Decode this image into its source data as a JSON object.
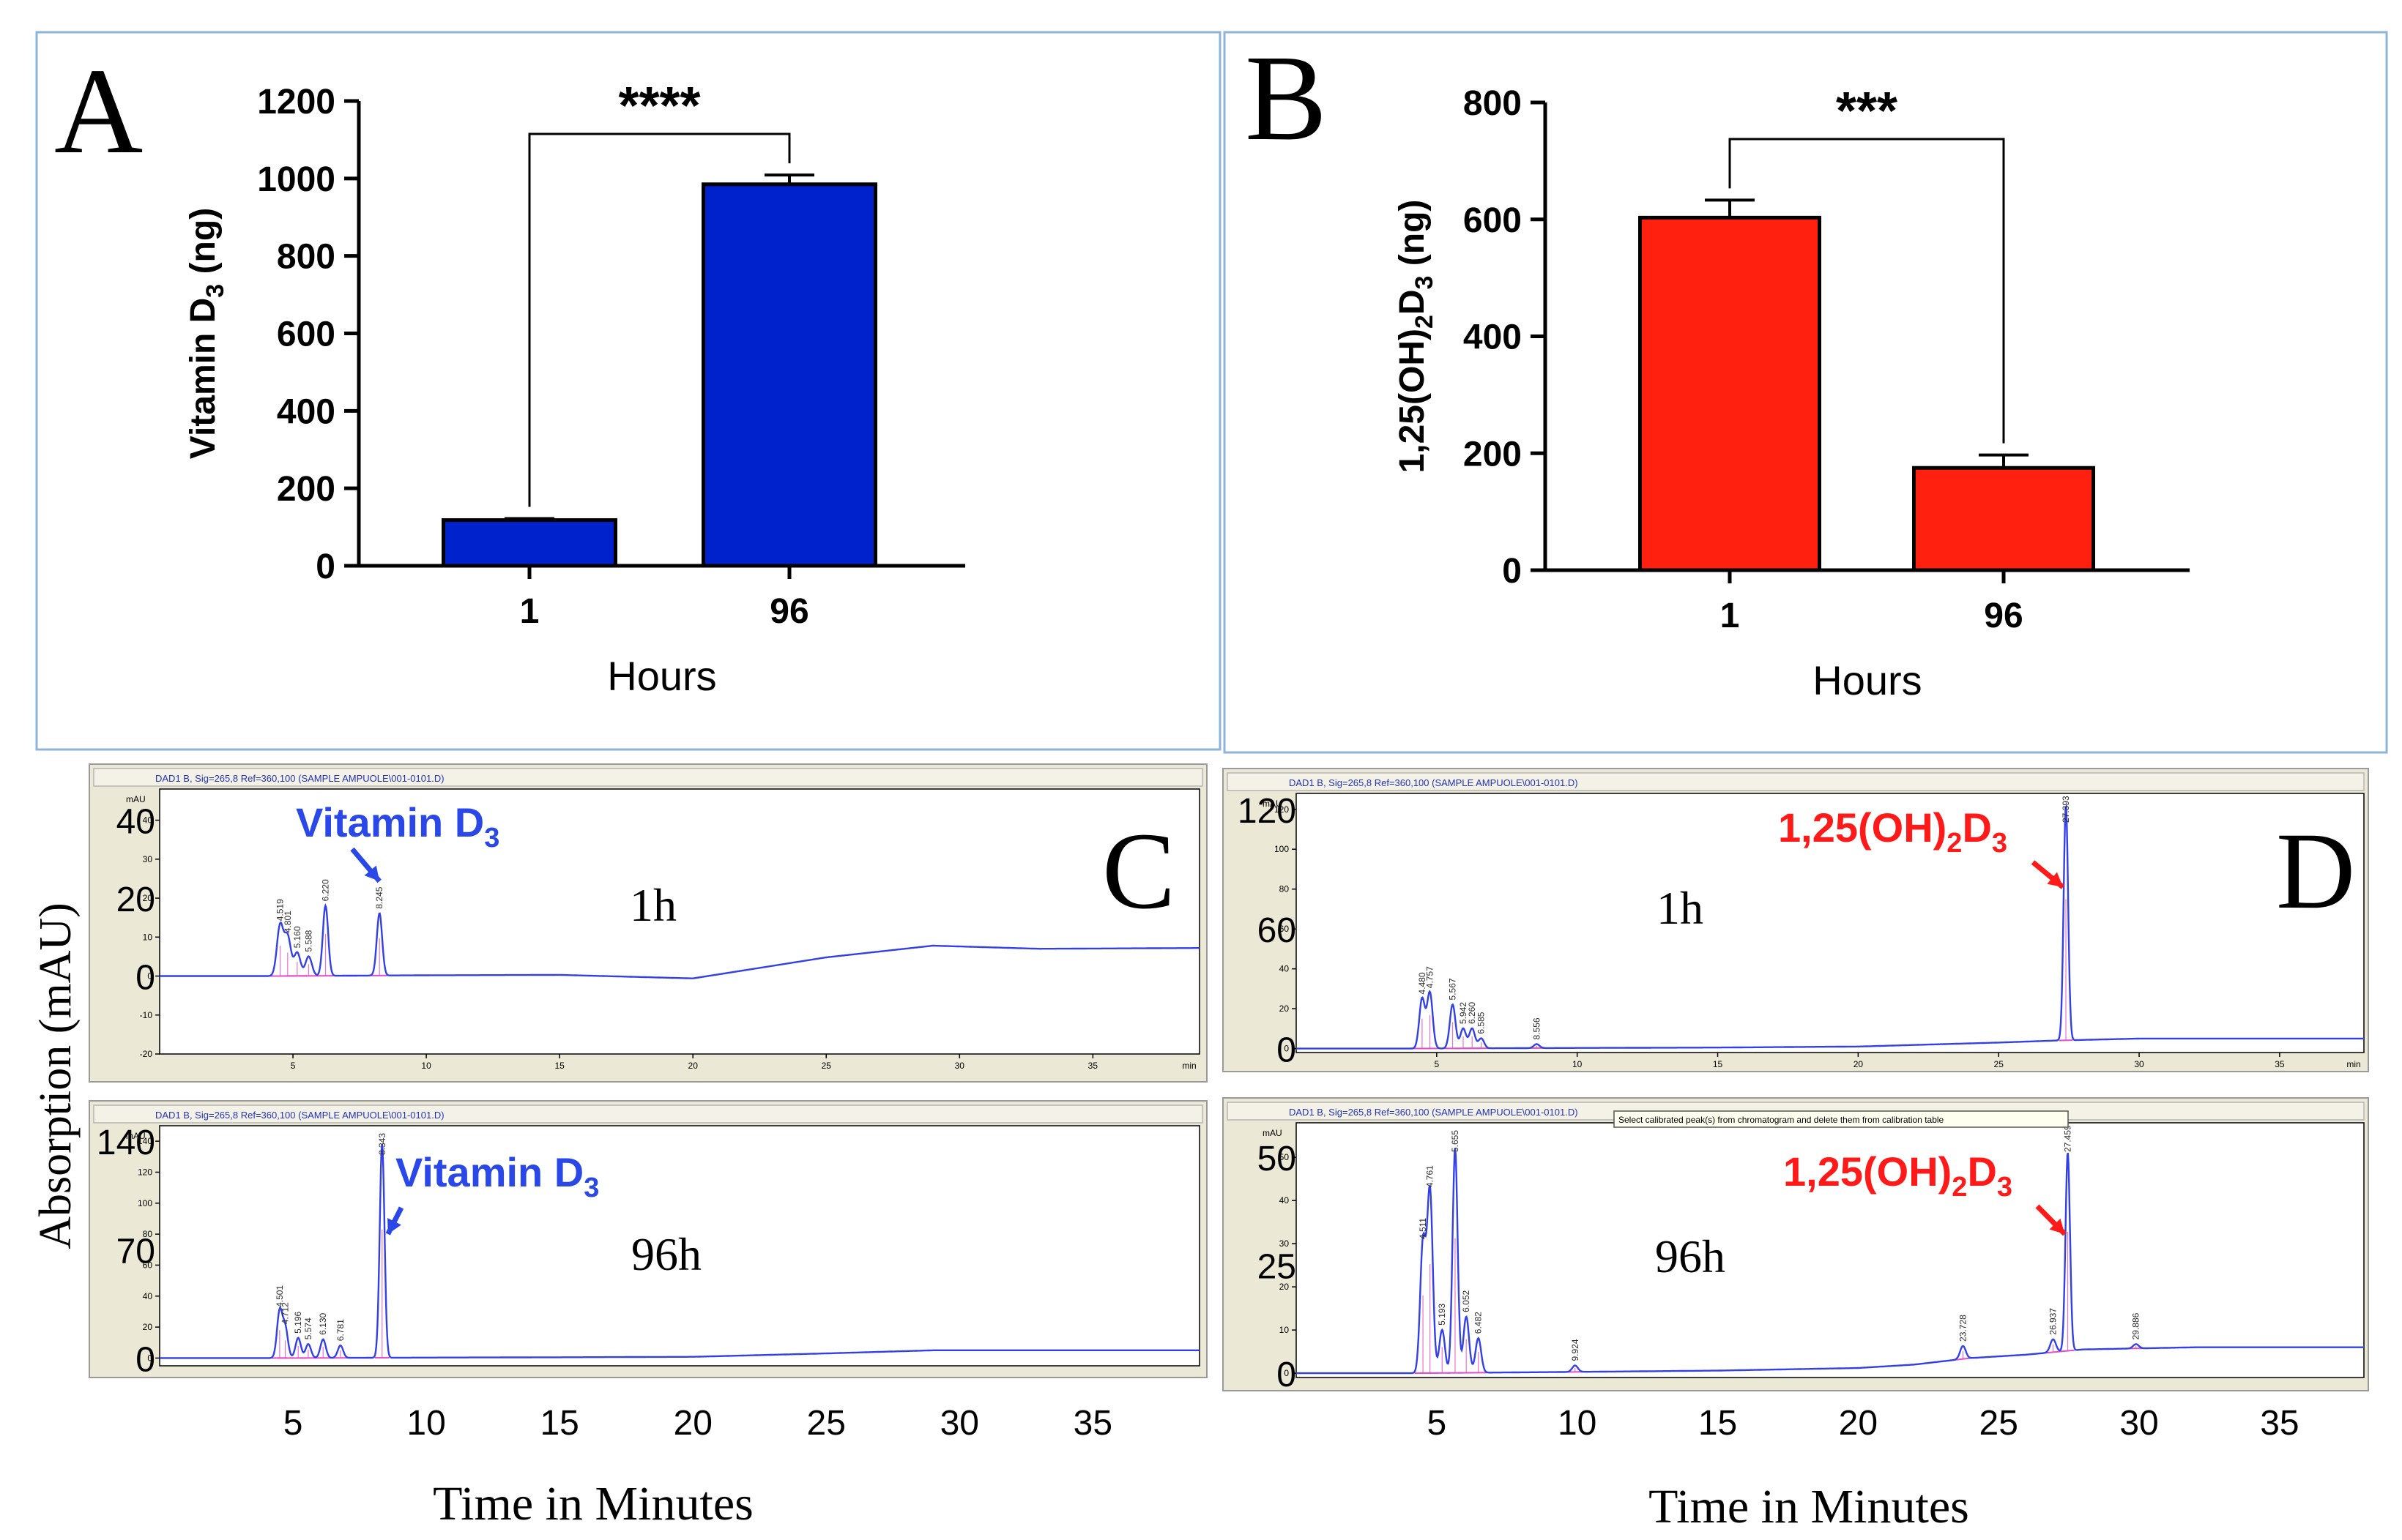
{
  "colors": {
    "blue_bar": "#0022CC",
    "red_bar": "#FF2010",
    "panel_border": "#8FB4D9",
    "chrom_bg": "#ECE8D6",
    "trace": "#3340E6",
    "baseline": "#E24FC8",
    "label_blue": "#2A48E8",
    "label_red": "#FF1A1A"
  },
  "figure": {
    "shared_ylabel": "Absorption (mAU)",
    "bottom_xlabel": "Time in Minutes"
  },
  "chart_data": [
    {
      "id": "A",
      "type": "bar",
      "panel_label": "A",
      "categories": [
        "1",
        "96"
      ],
      "values": [
        118,
        985
      ],
      "errors": [
        4,
        24
      ],
      "ylabel_main": "Vitamin D",
      "ylabel_sub": "3",
      "ylabel_tail": " (ng)",
      "xlabel": "Hours",
      "ylim": [
        0,
        1200
      ],
      "yticks": [
        "0",
        "200",
        "400",
        "600",
        "800",
        "1000",
        "1200"
      ],
      "significance": "****",
      "color": "#0022CC"
    },
    {
      "id": "B",
      "type": "bar",
      "panel_label": "B",
      "categories": [
        "1",
        "96"
      ],
      "values": [
        603,
        175
      ],
      "errors": [
        30,
        22
      ],
      "ylabel_main": "1,25(OH)",
      "ylabel_sub": "2",
      "ylabel_mid": "D",
      "ylabel_sub2": "3",
      "ylabel_tail": " (ng)",
      "xlabel": "Hours",
      "ylim": [
        0,
        800
      ],
      "yticks": [
        "0",
        "200",
        "400",
        "600",
        "800"
      ],
      "significance": "***",
      "color": "#FF2010"
    },
    {
      "id": "C1",
      "type": "line",
      "panel_label": "C",
      "header": "DAD1 B, Sig=265,8 Ref=360,100 (SAMPLE AMPUOLE\\001-0101.D)",
      "time_label": "1h",
      "unit": "mAU",
      "xlim": [
        0,
        39
      ],
      "ylim": [
        -20,
        48
      ],
      "small_yticks": [
        "-20",
        "-10",
        "0",
        "10",
        "20",
        "30",
        "40"
      ],
      "big_yticks": [
        "0",
        "20",
        "40"
      ],
      "small_xticks": [
        "5",
        "10",
        "15",
        "20",
        "25",
        "30",
        "35"
      ],
      "x_unit": "min",
      "baseline_points": [
        [
          0,
          0
        ],
        [
          4.3,
          0
        ],
        [
          10,
          0.2
        ],
        [
          15,
          0.3
        ],
        [
          20,
          -0.6
        ],
        [
          25,
          4.8
        ],
        [
          29,
          7.8
        ],
        [
          33,
          7
        ],
        [
          39,
          7.2
        ]
      ],
      "peaks": [
        {
          "t": 4.519,
          "h": 13,
          "w": 0.12
        },
        {
          "t": 4.801,
          "h": 10,
          "w": 0.12
        },
        {
          "t": 5.16,
          "h": 6,
          "w": 0.12
        },
        {
          "t": 5.588,
          "h": 5,
          "w": 0.12
        },
        {
          "t": 6.22,
          "h": 18,
          "w": 0.1
        },
        {
          "t": 8.245,
          "h": 16,
          "w": 0.1
        }
      ],
      "peak_labels": [
        "4.519",
        "4.801",
        "5.160",
        "5.588",
        "6.220",
        "8.245"
      ],
      "compound_main": "Vitamin D",
      "compound_sub": "3",
      "arrow_peak": 5
    },
    {
      "id": "C2",
      "type": "line",
      "header": "DAD1 B, Sig=265,8 Ref=360,100 (SAMPLE AMPUOLE\\001-0101.D)",
      "time_label": "96h",
      "unit": "mAU",
      "xlim": [
        0,
        39
      ],
      "ylim": [
        -5,
        150
      ],
      "small_yticks": [
        "0",
        "20",
        "40",
        "60",
        "80",
        "100",
        "120",
        "140"
      ],
      "big_yticks": [
        "0",
        "70",
        "140"
      ],
      "small_xticks": [],
      "baseline_points": [
        [
          0,
          0
        ],
        [
          4.6,
          0
        ],
        [
          10,
          0.3
        ],
        [
          15,
          0.5
        ],
        [
          20,
          0.8
        ],
        [
          25,
          3
        ],
        [
          29,
          5
        ],
        [
          33,
          5
        ],
        [
          39,
          5
        ]
      ],
      "peaks": [
        {
          "t": 4.501,
          "h": 30,
          "w": 0.1
        },
        {
          "t": 4.712,
          "h": 19,
          "w": 0.1
        },
        {
          "t": 5.196,
          "h": 13,
          "w": 0.1
        },
        {
          "t": 5.574,
          "h": 9,
          "w": 0.1
        },
        {
          "t": 6.13,
          "h": 12,
          "w": 0.1
        },
        {
          "t": 6.781,
          "h": 8,
          "w": 0.1
        },
        {
          "t": 8.343,
          "h": 138,
          "w": 0.09
        }
      ],
      "peak_labels": [
        "4.501",
        "4.712",
        "5.196",
        "5.574",
        "6.130",
        "6.781",
        "8.343"
      ],
      "compound_main": "Vitamin D",
      "compound_sub": "3",
      "arrow_peak": 6,
      "bottom_xticks": [
        "5",
        "10",
        "15",
        "20",
        "25",
        "30",
        "35"
      ]
    },
    {
      "id": "D1",
      "type": "line",
      "panel_label": "D",
      "header": "DAD1 B, Sig=265,8 Ref=360,100 (SAMPLE AMPUOLE\\001-0101.D)",
      "time_label": "1h",
      "unit": "mAU",
      "xlim": [
        0,
        38
      ],
      "ylim": [
        -2,
        128
      ],
      "small_yticks": [
        "0",
        "20",
        "40",
        "60",
        "80",
        "100",
        "120"
      ],
      "big_yticks": [
        "0",
        "60",
        "120"
      ],
      "small_xticks": [
        "5",
        "10",
        "15",
        "20",
        "25",
        "30",
        "35"
      ],
      "x_unit": "min",
      "baseline_points": [
        [
          0,
          0
        ],
        [
          4.2,
          0
        ],
        [
          10,
          0.3
        ],
        [
          15,
          0.5
        ],
        [
          20,
          1
        ],
        [
          25,
          3
        ],
        [
          27,
          4
        ],
        [
          30,
          5
        ],
        [
          38,
          5
        ]
      ],
      "peaks": [
        {
          "t": 4.48,
          "h": 25,
          "w": 0.1
        },
        {
          "t": 4.757,
          "h": 28,
          "w": 0.1
        },
        {
          "t": 5.567,
          "h": 22,
          "w": 0.1
        },
        {
          "t": 5.942,
          "h": 10,
          "w": 0.1
        },
        {
          "t": 6.26,
          "h": 10,
          "w": 0.1
        },
        {
          "t": 6.585,
          "h": 5,
          "w": 0.1
        },
        {
          "t": 8.556,
          "h": 2,
          "w": 0.1
        },
        {
          "t": 27.393,
          "h": 118,
          "w": 0.08
        }
      ],
      "peak_labels": [
        "4.480",
        "4.757",
        "5.567",
        "5.942",
        "6.260",
        "6.585",
        "8.556",
        "27.393"
      ],
      "compound_main": "1,25(OH)",
      "compound_sub": "2",
      "compound_mid": "D",
      "compound_sub2": "3",
      "arrow_peak": 7
    },
    {
      "id": "D2",
      "type": "line",
      "header": "DAD1 B, Sig=265,8 Ref=360,100 (SAMPLE AMPUOLE\\001-0101.D)",
      "tooltip": "Select calibrated peak(s) from chromatogram and delete them from calibration table",
      "time_label": "96h",
      "unit": "mAU",
      "xlim": [
        0,
        38
      ],
      "ylim": [
        -1,
        58
      ],
      "small_yticks": [
        "0",
        "10",
        "20",
        "30",
        "40",
        "50"
      ],
      "big_yticks": [
        "0",
        "25",
        "50"
      ],
      "small_xticks": [],
      "baseline_points": [
        [
          0,
          0
        ],
        [
          4.2,
          0
        ],
        [
          10,
          0.3
        ],
        [
          15,
          0.6
        ],
        [
          20,
          1.2
        ],
        [
          22,
          2
        ],
        [
          24,
          3.5
        ],
        [
          26,
          4.3
        ],
        [
          28,
          5.5
        ],
        [
          32,
          6
        ],
        [
          38,
          6
        ]
      ],
      "peaks": [
        {
          "t": 4.511,
          "h": 30,
          "w": 0.1
        },
        {
          "t": 4.761,
          "h": 42,
          "w": 0.1
        },
        {
          "t": 5.193,
          "h": 10,
          "w": 0.1
        },
        {
          "t": 5.655,
          "h": 52,
          "w": 0.09
        },
        {
          "t": 6.052,
          "h": 13,
          "w": 0.1
        },
        {
          "t": 6.482,
          "h": 8,
          "w": 0.1
        },
        {
          "t": 9.924,
          "h": 1.5,
          "w": 0.1
        },
        {
          "t": 23.728,
          "h": 3,
          "w": 0.1
        },
        {
          "t": 26.937,
          "h": 3,
          "w": 0.1
        },
        {
          "t": 27.459,
          "h": 46,
          "w": 0.08
        },
        {
          "t": 29.886,
          "h": 1,
          "w": 0.1
        }
      ],
      "peak_labels": [
        "4.511",
        "4.761",
        "5.193",
        "5.655",
        "6.052",
        "6.482",
        "9.924",
        "23.728",
        "26.937",
        "27.459",
        "29.886"
      ],
      "compound_main": "1,25(OH)",
      "compound_sub": "2",
      "compound_mid": "D",
      "compound_sub2": "3",
      "arrow_peak": 9,
      "bottom_xticks": [
        "5",
        "10",
        "15",
        "20",
        "25",
        "30",
        "35"
      ]
    }
  ]
}
